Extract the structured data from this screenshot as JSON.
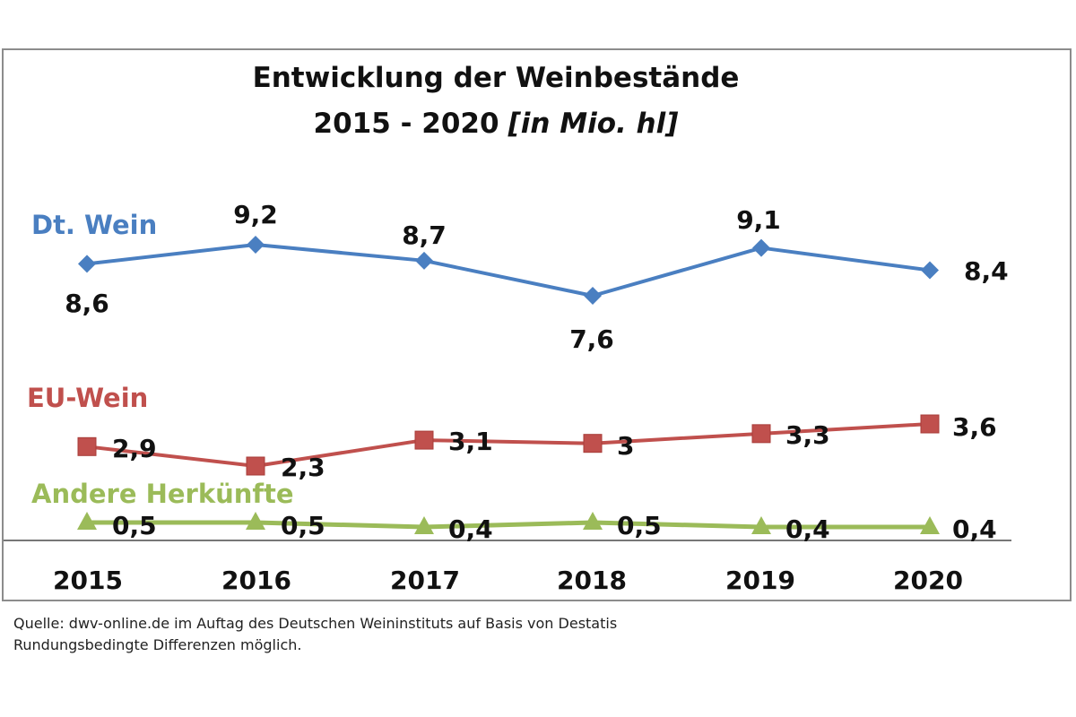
{
  "chart_data": {
    "type": "line",
    "title": "Entwicklung der Weinbestände",
    "subtitle": "2015 - 2020",
    "unit": "[in Mio. hl]",
    "categories": [
      "2015",
      "2016",
      "2017",
      "2018",
      "2019",
      "2020"
    ],
    "series": [
      {
        "name": "Dt. Wein",
        "color": "#4a7fc1",
        "marker": "diamond",
        "values": [
          8.6,
          9.2,
          8.7,
          7.6,
          9.1,
          8.4
        ],
        "labels": [
          "8,6",
          "9,2",
          "8,7",
          "7,6",
          "9,1",
          "8,4"
        ]
      },
      {
        "name": "EU-Wein",
        "color": "#c0504d",
        "marker": "square",
        "values": [
          2.9,
          2.3,
          3.1,
          3.0,
          3.3,
          3.6
        ],
        "labels": [
          "2,9",
          "2,3",
          "3,1",
          "3",
          "3,3",
          "3,6"
        ]
      },
      {
        "name": "Andere Herkünfte",
        "color": "#9bbb59",
        "marker": "triangle",
        "values": [
          0.5,
          0.5,
          0.4,
          0.5,
          0.4,
          0.4
        ],
        "labels": [
          "0,5",
          "0,5",
          "0,4",
          "0,5",
          "0,4",
          "0,4"
        ]
      }
    ],
    "grid": false,
    "legend": "inline"
  },
  "source": {
    "line1": "Quelle: dwv-online.de im Auftag des Deutschen Weininstituts auf Basis von Destatis",
    "line2": "Rundungsbedingte Differenzen möglich."
  }
}
